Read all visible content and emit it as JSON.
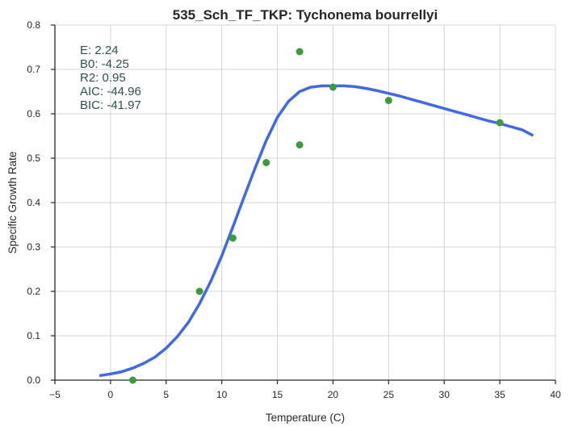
{
  "chart_data": {
    "type": "scatter",
    "title": "535_Sch_TF_TKP: Tychonema bourrellyi",
    "xlabel": "Temperature (C)",
    "ylabel": "Specific Growth Rate",
    "xlim": [
      -5,
      40
    ],
    "ylim": [
      0,
      0.8
    ],
    "x_ticks": [
      -5,
      0,
      5,
      10,
      15,
      20,
      25,
      30,
      35,
      40
    ],
    "y_ticks": [
      0.0,
      0.1,
      0.2,
      0.3,
      0.4,
      0.5,
      0.6,
      0.7,
      0.8
    ],
    "x_tick_labels": [
      "−5",
      "0",
      "5",
      "10",
      "15",
      "20",
      "25",
      "30",
      "35",
      "40"
    ],
    "y_tick_labels": [
      "0.0",
      "0.1",
      "0.2",
      "0.3",
      "0.4",
      "0.5",
      "0.6",
      "0.7",
      "0.8"
    ],
    "grid": true,
    "points": {
      "color": "#3c9b3c",
      "x": [
        2,
        8,
        11,
        14,
        17,
        17,
        20,
        25,
        35
      ],
      "y": [
        0.0,
        0.2,
        0.32,
        0.49,
        0.74,
        0.53,
        0.66,
        0.63,
        0.58
      ]
    },
    "fit_curve": {
      "color": "#4169e1",
      "x": [
        -1,
        0,
        1,
        2,
        3,
        4,
        5,
        6,
        7,
        8,
        9,
        10,
        11,
        12,
        13,
        14,
        15,
        16,
        17,
        18,
        19,
        20,
        21,
        22,
        23,
        24,
        25,
        26,
        27,
        28,
        29,
        30,
        31,
        32,
        33,
        34,
        35,
        36,
        37,
        38
      ],
      "y": [
        0.01,
        0.014,
        0.019,
        0.027,
        0.038,
        0.052,
        0.072,
        0.098,
        0.13,
        0.172,
        0.222,
        0.28,
        0.345,
        0.412,
        0.478,
        0.54,
        0.592,
        0.628,
        0.65,
        0.66,
        0.663,
        0.663,
        0.663,
        0.661,
        0.657,
        0.652,
        0.646,
        0.64,
        0.633,
        0.626,
        0.619,
        0.612,
        0.605,
        0.598,
        0.591,
        0.584,
        0.578,
        0.571,
        0.564,
        0.551
      ]
    },
    "stats_color": "#2f4f4f",
    "stats": [
      {
        "label": "E:",
        "value": "2.24"
      },
      {
        "label": "B0:",
        "value": "-4.25"
      },
      {
        "label": "R2:",
        "value": "0.95"
      },
      {
        "label": "AIC:",
        "value": "-44.96"
      },
      {
        "label": "BIC:",
        "value": "-41.97"
      }
    ]
  }
}
